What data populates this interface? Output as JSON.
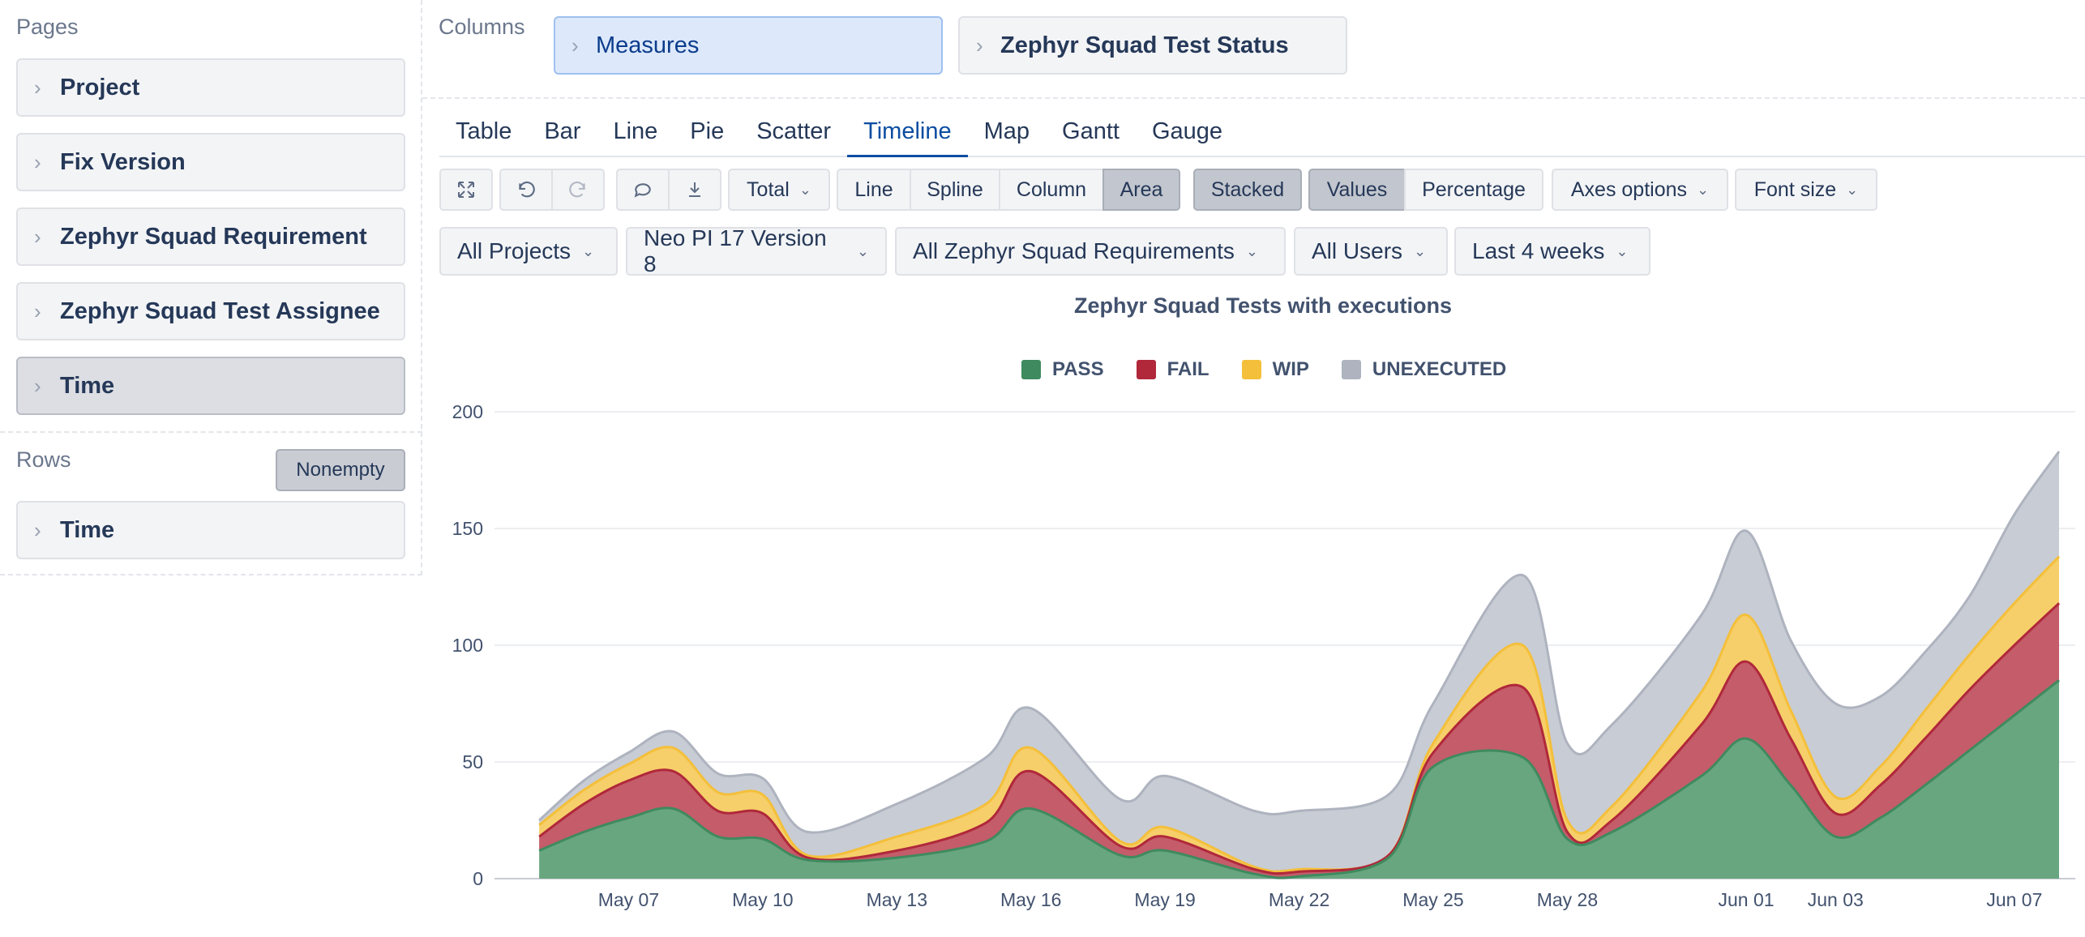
{
  "sidebar": {
    "pages_title": "Pages",
    "pages": [
      {
        "label": "Project"
      },
      {
        "label": "Fix Version"
      },
      {
        "label": "Zephyr Squad Requirement"
      },
      {
        "label": "Zephyr Squad Test Assignee"
      },
      {
        "label": "Time"
      }
    ],
    "rows_title": "Rows",
    "nonempty_label": "Nonempty",
    "rows": [
      {
        "label": "Time"
      }
    ]
  },
  "columns": {
    "title": "Columns",
    "chips": [
      {
        "label": "Measures"
      },
      {
        "label": "Zephyr Squad Test Status"
      }
    ]
  },
  "tabs": [
    {
      "label": "Table"
    },
    {
      "label": "Bar"
    },
    {
      "label": "Line"
    },
    {
      "label": "Pie"
    },
    {
      "label": "Scatter"
    },
    {
      "label": "Timeline",
      "active": true
    },
    {
      "label": "Map"
    },
    {
      "label": "Gantt"
    },
    {
      "label": "Gauge"
    }
  ],
  "toolbar": {
    "total_label": "Total",
    "line_label": "Line",
    "spline_label": "Spline",
    "column_label": "Column",
    "area_label": "Area",
    "stacked_label": "Stacked",
    "values_label": "Values",
    "percentage_label": "Percentage",
    "axes_options_label": "Axes options",
    "font_size_label": "Font size",
    "icons": [
      "fullscreen-icon",
      "undo-icon",
      "redo-icon",
      "comment-icon",
      "export-icon"
    ]
  },
  "filters": [
    {
      "label": "All Projects"
    },
    {
      "label": "Neo PI 17 Version 8"
    },
    {
      "label": "All Zephyr Squad Requirements"
    },
    {
      "label": "All Users"
    },
    {
      "label": "Last 4 weeks"
    }
  ],
  "chart_data": {
    "type": "area",
    "stacked": true,
    "title": "Zephyr Squad Tests with executions",
    "legend_position": "top-center",
    "ylim": [
      0,
      200
    ],
    "yticks": [
      0,
      50,
      100,
      150,
      200
    ],
    "x_start": "May 04",
    "x_end": "Jun 08",
    "xticks": [
      "May 07",
      "May 10",
      "May 13",
      "May 16",
      "May 19",
      "May 22",
      "May 25",
      "May 28",
      "Jun 01",
      "Jun 03",
      "Jun 07"
    ],
    "x": [
      "May 05",
      "May 06",
      "May 07",
      "May 08",
      "May 09",
      "May 10",
      "May 11",
      "May 13",
      "May 15",
      "May 16",
      "May 18",
      "May 19",
      "May 21",
      "May 22",
      "May 24",
      "May 25",
      "May 27",
      "May 28",
      "May 29",
      "May 31",
      "Jun 01",
      "Jun 02",
      "Jun 03",
      "Jun 04",
      "Jun 05",
      "Jun 06",
      "Jun 07",
      "Jun 08"
    ],
    "series": [
      {
        "name": "PASS",
        "color": "#3f8a5f",
        "fill": "#68a67f",
        "values": [
          12,
          20,
          26,
          30,
          18,
          17,
          8,
          9,
          16,
          30,
          10,
          12,
          2,
          1,
          9,
          48,
          52,
          17,
          20,
          44,
          60,
          40,
          18,
          26,
          40,
          55,
          70,
          85
        ]
      },
      {
        "name": "FAIL",
        "color": "#b0283a",
        "fill": "#c45c6a",
        "values": [
          6,
          12,
          16,
          16,
          11,
          11,
          1,
          3,
          8,
          16,
          4,
          6,
          2,
          2,
          1,
          6,
          30,
          3,
          5,
          22,
          33,
          20,
          10,
          14,
          20,
          26,
          30,
          33
        ]
      },
      {
        "name": "WIP",
        "color": "#f4bf3a",
        "fill": "#f6cf6a",
        "values": [
          5,
          6,
          7,
          10,
          8,
          8,
          1,
          6,
          8,
          10,
          2,
          4,
          1,
          1,
          0,
          4,
          18,
          5,
          6,
          14,
          20,
          12,
          7,
          8,
          12,
          15,
          18,
          20
        ]
      },
      {
        "name": "UNEXECUTED",
        "color": "#aeb3bf",
        "fill": "#c8ccd4",
        "values": [
          2,
          4,
          5,
          7,
          8,
          7,
          10,
          14,
          20,
          17,
          18,
          22,
          24,
          25,
          26,
          17,
          30,
          33,
          35,
          33,
          36,
          30,
          40,
          30,
          25,
          25,
          38,
          45
        ]
      }
    ]
  }
}
